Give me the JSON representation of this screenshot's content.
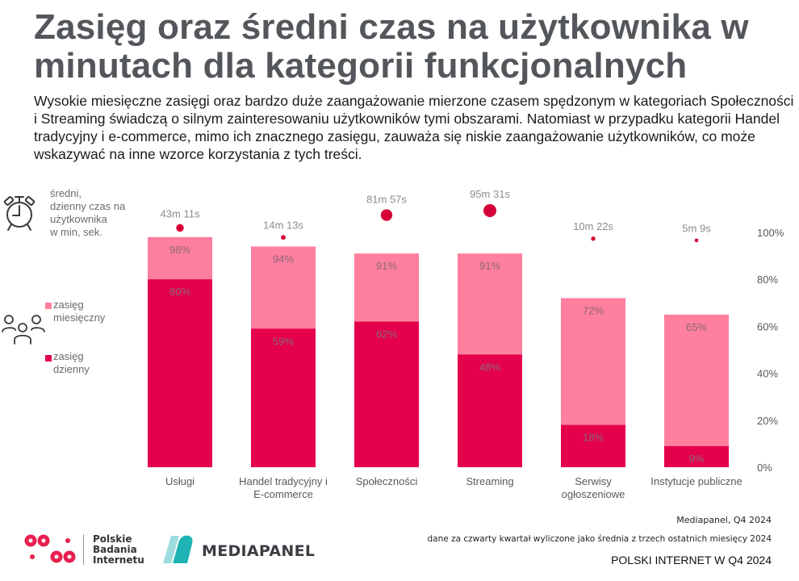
{
  "header": {
    "title": "Zasięg oraz średni czas na użytkownika w minutach dla kategorii funkcjonalnych",
    "subtitle": "Wysokie miesięczne zasięgi oraz bardzo duże zaangażowanie mierzone czasem spędzonym w kategoriach Społeczności i Streaming świadczą o silnym zainteresowaniu użytkowników tymi obszarami. Natomiast w przypadku kategorii Handel tradycyjny i e-commerce, mimo ich znacznego zasięgu, zauważa się niskie zaangażowanie użytkowników, co może wskazywać na inne wzorce korzystania z tych treści."
  },
  "legend": {
    "time_label_lines": [
      "średni,",
      "dzienny czas na",
      "użytkownika",
      "w min, sek."
    ],
    "monthly_label_lines": [
      "zasięg",
      "miesięczny"
    ],
    "daily_label_lines": [
      "zasięg",
      "dzienny"
    ],
    "time_icon": "alarm-clock-icon",
    "users_icon": "users-group-icon"
  },
  "colors": {
    "monthly": "#ff7f9f",
    "daily": "#e4004b",
    "dot": "#d50037",
    "bar_label": "#8a6877",
    "axis_text": "#595959",
    "category_text": "#595959",
    "time_text": "#8c8c8c"
  },
  "chart_data": {
    "type": "bar",
    "stacked": false,
    "overlap": true,
    "categories": [
      [
        "Usługi"
      ],
      [
        "Handel tradycyjny i",
        "E-commerce"
      ],
      [
        "Społeczności"
      ],
      [
        "Streaming"
      ],
      [
        "Serwisy",
        "ogłoszeniowe"
      ],
      [
        "Instytucje publiczne"
      ]
    ],
    "series": [
      {
        "name": "zasięg miesięczny",
        "values": [
          98,
          94,
          91,
          91,
          72,
          65
        ]
      },
      {
        "name": "zasięg dzienny",
        "values": [
          80,
          59,
          62,
          48,
          18,
          9
        ]
      }
    ],
    "time_series": {
      "name": "średni, dzienny czas na użytkownika w min, sek.",
      "labels": [
        "43m 11s",
        "14m 13s",
        "81m 57s",
        "95m 31s",
        "10m 22s",
        "5m 9s"
      ],
      "minutes": [
        43.18,
        14.22,
        81.95,
        95.52,
        10.37,
        5.15
      ]
    },
    "y_axis": {
      "ticks": [
        "100%",
        "80%",
        "60%",
        "40%",
        "20%",
        "0%"
      ],
      "tick_values": [
        100,
        80,
        60,
        40,
        20,
        0
      ],
      "position": "right",
      "ylim": [
        0,
        100
      ]
    },
    "grid": false,
    "legend_position": "left"
  },
  "footer": {
    "source": "Mediapanel, Q4 2024",
    "note": "dane za czwarty kwartał wyliczone jako średnia z trzech ostatnich miesięcy 2024",
    "brand": "POLSKI INTERNET W Q4 2024",
    "logo_pbi_lines": [
      "Polskie",
      "Badania",
      "Internetu"
    ],
    "logo_mediapanel": "MEDIAPANEL"
  }
}
